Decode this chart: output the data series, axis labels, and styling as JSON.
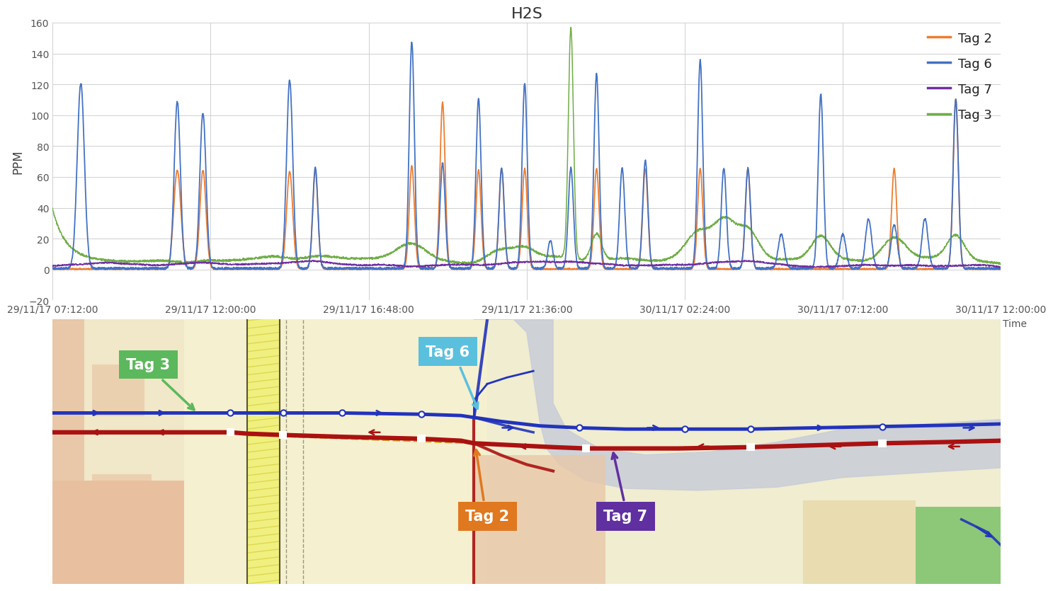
{
  "title": "H2S",
  "ylabel": "PPM",
  "xlabel": "Time",
  "ylim": [
    -20,
    160
  ],
  "yticks": [
    -20,
    0,
    20,
    40,
    60,
    80,
    100,
    120,
    140,
    160
  ],
  "xtick_labels": [
    "29/11/17 07:12:00",
    "29/11/17 12:00:00",
    "29/11/17 16:48:00",
    "29/11/17 21:36:00",
    "30/11/17 02:24:00",
    "30/11/17 07:12:00",
    "30/11/17 12:00:00"
  ],
  "tag2_color": "#ed7d31",
  "tag6_color": "#4472c4",
  "tag7_color": "#7030a0",
  "tag3_color": "#70ad47",
  "legend_labels": [
    "Tag 2",
    "Tag 6",
    "Tag 7",
    "Tag 3"
  ],
  "title_fontsize": 16,
  "axis_label_fontsize": 12,
  "tick_fontsize": 10,
  "legend_fontsize": 13,
  "map_bg": "#f5e9cc",
  "map_light_yellow": "#f5f0c8",
  "map_hatched_yellow": "#e8d44d",
  "map_peach_left": "#e8c8a8",
  "map_peach_bottom": "#e8c8a8",
  "map_gray_road": "#c8c8c8",
  "map_river": "#d0d8e8",
  "map_green_patch": "#8db87a",
  "map_peach_right": "#e0c8a8",
  "blue_pipe": "#2233bb",
  "red_pipe": "#aa1111",
  "tag3_box": "#5cb85c",
  "tag6_box": "#5bc0de",
  "tag2_box": "#e07820",
  "tag7_box": "#6030a0"
}
